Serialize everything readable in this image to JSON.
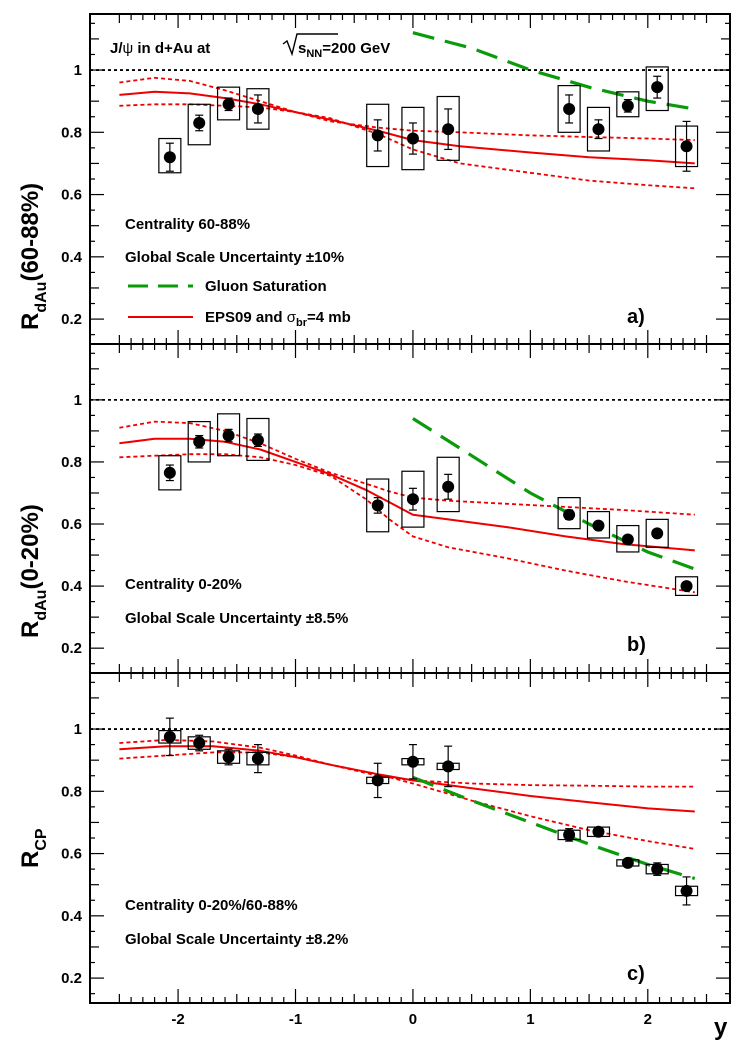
{
  "figure": {
    "x_axis_label": "y",
    "x_ticks": [
      "-2",
      "-1",
      "0",
      "1",
      "2"
    ],
    "y_ticks": [
      "0.2",
      "0.4",
      "0.6",
      "0.8",
      "1"
    ],
    "title": {
      "part1": "J/",
      "psi": "ψ",
      "part2": " in d+Au at",
      "sqrt": "s",
      "sub": "NN",
      "part3": "=200 GeV"
    },
    "legend": {
      "gluon": "Gluon Saturation",
      "eps_part1": "EPS09 and ",
      "sigma": "σ",
      "sigma_sub": "br",
      "eps_part2": "=4 mb"
    },
    "colors": {
      "data": "#000000",
      "eps09": "#ee0000",
      "saturation": "#0a9a0a",
      "reference": "#000000"
    }
  },
  "chart_data": [
    {
      "type": "scatter",
      "panel": "a)",
      "ylabel": {
        "main": "R",
        "sub": "dAu",
        "tail": "(60-88%)"
      },
      "annotations": [
        "Centrality 60-88%",
        "Global Scale Uncertainty ±10%"
      ],
      "xlim": [
        -2.75,
        2.7
      ],
      "ylim": [
        0.12,
        1.18
      ],
      "reference_line": 1.0,
      "points": [
        {
          "x": -2.07,
          "y": 0.72,
          "stat_err": 0.045,
          "sys": [
            0.67,
            0.78
          ]
        },
        {
          "x": -1.82,
          "y": 0.83,
          "stat_err": 0.025,
          "sys": [
            0.76,
            0.89
          ]
        },
        {
          "x": -1.57,
          "y": 0.89,
          "stat_err": 0.02,
          "sys": [
            0.84,
            0.945
          ]
        },
        {
          "x": -1.32,
          "y": 0.875,
          "stat_err": 0.045,
          "sys": [
            0.81,
            0.94
          ]
        },
        {
          "x": -0.3,
          "y": 0.79,
          "stat_err": 0.05,
          "sys": [
            0.69,
            0.89
          ]
        },
        {
          "x": 0.0,
          "y": 0.78,
          "stat_err": 0.05,
          "sys": [
            0.68,
            0.88
          ]
        },
        {
          "x": 0.3,
          "y": 0.81,
          "stat_err": 0.065,
          "sys": [
            0.71,
            0.915
          ]
        },
        {
          "x": 1.33,
          "y": 0.875,
          "stat_err": 0.045,
          "sys": [
            0.8,
            0.95
          ]
        },
        {
          "x": 1.58,
          "y": 0.81,
          "stat_err": 0.03,
          "sys": [
            0.74,
            0.88
          ]
        },
        {
          "x": 1.83,
          "y": 0.885,
          "stat_err": 0.02,
          "sys": [
            0.85,
            0.93
          ]
        },
        {
          "x": 2.08,
          "y": 0.945,
          "stat_err": 0.035,
          "sys": [
            0.87,
            1.01
          ]
        },
        {
          "x": 2.33,
          "y": 0.755,
          "stat_err": 0.08,
          "sys": [
            0.69,
            0.82
          ]
        }
      ],
      "eps09_central": {
        "x": [
          -2.5,
          -2.2,
          -1.9,
          -1.6,
          -1.3,
          -1.0,
          -0.7,
          -0.3,
          0.0,
          0.4,
          1.0,
          1.5,
          2.0,
          2.4
        ],
        "y": [
          0.92,
          0.93,
          0.925,
          0.91,
          0.89,
          0.865,
          0.84,
          0.805,
          0.775,
          0.755,
          0.735,
          0.72,
          0.71,
          0.7
        ]
      },
      "eps09_upper": {
        "x": [
          -2.5,
          -2.2,
          -1.9,
          -1.6,
          -1.3,
          -1.0,
          -0.7,
          -0.3,
          0.0,
          0.4,
          1.0,
          1.5,
          2.0,
          2.4
        ],
        "y": [
          0.96,
          0.975,
          0.965,
          0.935,
          0.9,
          0.865,
          0.835,
          0.815,
          0.805,
          0.8,
          0.79,
          0.785,
          0.78,
          0.775
        ]
      },
      "eps09_lower": {
        "x": [
          -2.5,
          -2.2,
          -1.9,
          -1.6,
          -1.3,
          -1.0,
          -0.7,
          -0.3,
          0.0,
          0.4,
          1.0,
          1.5,
          2.0,
          2.4
        ],
        "y": [
          0.885,
          0.89,
          0.89,
          0.885,
          0.88,
          0.865,
          0.845,
          0.795,
          0.745,
          0.7,
          0.67,
          0.645,
          0.63,
          0.62
        ]
      },
      "saturation": {
        "x": [
          0.0,
          0.5,
          1.0,
          1.5,
          2.0,
          2.4
        ],
        "y": [
          1.12,
          1.07,
          1.0,
          0.945,
          0.9,
          0.875
        ]
      }
    },
    {
      "type": "scatter",
      "panel": "b)",
      "ylabel": {
        "main": "R",
        "sub": "dAu",
        "tail": "(0-20%)"
      },
      "annotations": [
        "Centrality 0-20%",
        "Global Scale Uncertainty ±8.5%"
      ],
      "xlim": [
        -2.75,
        2.7
      ],
      "ylim": [
        0.12,
        1.18
      ],
      "reference_line": 1.0,
      "points": [
        {
          "x": -2.07,
          "y": 0.765,
          "stat_err": 0.025,
          "sys": [
            0.71,
            0.82
          ]
        },
        {
          "x": -1.82,
          "y": 0.865,
          "stat_err": 0.02,
          "sys": [
            0.8,
            0.93
          ]
        },
        {
          "x": -1.57,
          "y": 0.885,
          "stat_err": 0.02,
          "sys": [
            0.82,
            0.955
          ]
        },
        {
          "x": -1.32,
          "y": 0.87,
          "stat_err": 0.02,
          "sys": [
            0.805,
            0.94
          ]
        },
        {
          "x": -0.3,
          "y": 0.66,
          "stat_err": 0.025,
          "sys": [
            0.575,
            0.745
          ]
        },
        {
          "x": 0.0,
          "y": 0.68,
          "stat_err": 0.035,
          "sys": [
            0.59,
            0.77
          ]
        },
        {
          "x": 0.3,
          "y": 0.72,
          "stat_err": 0.04,
          "sys": [
            0.64,
            0.815
          ]
        },
        {
          "x": 1.33,
          "y": 0.63,
          "stat_err": 0.015,
          "sys": [
            0.585,
            0.685
          ]
        },
        {
          "x": 1.58,
          "y": 0.595,
          "stat_err": 0.01,
          "sys": [
            0.555,
            0.64
          ]
        },
        {
          "x": 1.83,
          "y": 0.55,
          "stat_err": 0.01,
          "sys": [
            0.51,
            0.595
          ]
        },
        {
          "x": 2.08,
          "y": 0.57,
          "stat_err": 0.01,
          "sys": [
            0.525,
            0.615
          ]
        },
        {
          "x": 2.33,
          "y": 0.4,
          "stat_err": 0.01,
          "sys": [
            0.37,
            0.43
          ]
        }
      ],
      "eps09_central": {
        "x": [
          -2.5,
          -2.2,
          -1.9,
          -1.6,
          -1.3,
          -1.0,
          -0.7,
          -0.4,
          -0.2,
          0.0,
          0.3,
          0.8,
          1.3,
          1.8,
          2.4
        ],
        "y": [
          0.86,
          0.875,
          0.875,
          0.865,
          0.84,
          0.8,
          0.76,
          0.71,
          0.67,
          0.63,
          0.615,
          0.59,
          0.56,
          0.535,
          0.515
        ]
      },
      "eps09_upper": {
        "x": [
          -2.5,
          -2.2,
          -1.9,
          -1.6,
          -1.3,
          -1.0,
          -0.7,
          -0.4,
          -0.2,
          0.0,
          0.3,
          0.8,
          1.3,
          1.8,
          2.4
        ],
        "y": [
          0.91,
          0.93,
          0.925,
          0.9,
          0.86,
          0.81,
          0.765,
          0.73,
          0.705,
          0.685,
          0.675,
          0.665,
          0.655,
          0.645,
          0.63
        ]
      },
      "eps09_lower": {
        "x": [
          -2.5,
          -2.2,
          -1.9,
          -1.6,
          -1.3,
          -1.0,
          -0.7,
          -0.4,
          -0.2,
          0.0,
          0.3,
          0.8,
          1.3,
          1.8,
          2.4
        ],
        "y": [
          0.815,
          0.82,
          0.825,
          0.825,
          0.815,
          0.79,
          0.755,
          0.68,
          0.615,
          0.56,
          0.525,
          0.49,
          0.45,
          0.415,
          0.38
        ]
      },
      "saturation": {
        "x": [
          0.0,
          0.5,
          1.0,
          1.5,
          2.0,
          2.4
        ],
        "y": [
          0.94,
          0.82,
          0.7,
          0.6,
          0.51,
          0.455
        ]
      }
    },
    {
      "type": "scatter",
      "panel": "c)",
      "ylabel": {
        "main": "R",
        "sub": "CP",
        "tail": ""
      },
      "annotations": [
        "Centrality 0-20%/60-88%",
        "Global Scale Uncertainty ±8.2%"
      ],
      "xlim": [
        -2.75,
        2.7
      ],
      "ylim": [
        0.12,
        1.18
      ],
      "reference_line": 1.0,
      "points": [
        {
          "x": -2.07,
          "y": 0.975,
          "stat_err": 0.06,
          "sys": [
            0.955,
            0.995
          ]
        },
        {
          "x": -1.82,
          "y": 0.955,
          "stat_err": 0.025,
          "sys": [
            0.935,
            0.975
          ]
        },
        {
          "x": -1.57,
          "y": 0.91,
          "stat_err": 0.025,
          "sys": [
            0.89,
            0.93
          ]
        },
        {
          "x": -1.32,
          "y": 0.905,
          "stat_err": 0.045,
          "sys": [
            0.885,
            0.925
          ]
        },
        {
          "x": -0.3,
          "y": 0.835,
          "stat_err": 0.055,
          "sys": [
            0.825,
            0.845
          ]
        },
        {
          "x": 0.0,
          "y": 0.895,
          "stat_err": 0.055,
          "sys": [
            0.885,
            0.905
          ]
        },
        {
          "x": 0.3,
          "y": 0.88,
          "stat_err": 0.065,
          "sys": [
            0.87,
            0.89
          ]
        },
        {
          "x": 1.33,
          "y": 0.66,
          "stat_err": 0.02,
          "sys": [
            0.645,
            0.675
          ]
        },
        {
          "x": 1.58,
          "y": 0.67,
          "stat_err": 0.015,
          "sys": [
            0.655,
            0.685
          ]
        },
        {
          "x": 1.83,
          "y": 0.57,
          "stat_err": 0.01,
          "sys": [
            0.56,
            0.58
          ]
        },
        {
          "x": 2.08,
          "y": 0.55,
          "stat_err": 0.02,
          "sys": [
            0.535,
            0.565
          ]
        },
        {
          "x": 2.33,
          "y": 0.48,
          "stat_err": 0.045,
          "sys": [
            0.465,
            0.495
          ]
        }
      ],
      "eps09_central": {
        "x": [
          -2.5,
          -2.1,
          -1.7,
          -1.3,
          -1.0,
          -0.7,
          -0.3,
          0.0,
          0.5,
          1.0,
          1.5,
          2.0,
          2.4
        ],
        "y": [
          0.935,
          0.945,
          0.945,
          0.93,
          0.91,
          0.885,
          0.855,
          0.835,
          0.81,
          0.785,
          0.765,
          0.745,
          0.735
        ]
      },
      "eps09_upper": {
        "x": [
          -2.5,
          -2.1,
          -1.7,
          -1.3,
          -1.0,
          -0.7,
          -0.3,
          0.0,
          0.5,
          1.0,
          1.5,
          2.0,
          2.4
        ],
        "y": [
          0.955,
          0.965,
          0.96,
          0.94,
          0.915,
          0.885,
          0.85,
          0.835,
          0.825,
          0.82,
          0.818,
          0.815,
          0.815
        ]
      },
      "eps09_lower": {
        "x": [
          -2.5,
          -2.1,
          -1.7,
          -1.3,
          -1.0,
          -0.7,
          -0.3,
          0.0,
          0.5,
          1.0,
          1.5,
          2.0,
          2.4
        ],
        "y": [
          0.905,
          0.915,
          0.925,
          0.925,
          0.91,
          0.885,
          0.855,
          0.825,
          0.77,
          0.72,
          0.675,
          0.64,
          0.615
        ]
      },
      "saturation": {
        "x": [
          0.0,
          0.5,
          1.0,
          1.5,
          2.0,
          2.4
        ],
        "y": [
          0.845,
          0.77,
          0.7,
          0.63,
          0.565,
          0.52
        ]
      }
    }
  ]
}
